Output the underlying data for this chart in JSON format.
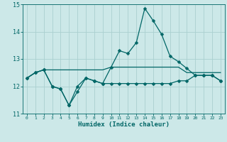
{
  "xlabel": "Humidex (Indice chaleur)",
  "xlim": [
    -0.5,
    23.5
  ],
  "ylim": [
    11,
    15
  ],
  "yticks": [
    11,
    12,
    13,
    14,
    15
  ],
  "xticks": [
    0,
    1,
    2,
    3,
    4,
    5,
    6,
    7,
    8,
    9,
    10,
    11,
    12,
    13,
    14,
    15,
    16,
    17,
    18,
    19,
    20,
    21,
    22,
    23
  ],
  "bg_color": "#cce8e8",
  "grid_color": "#aad0d0",
  "line_color": "#006666",
  "line1_x": [
    0,
    1,
    2,
    3,
    4,
    5,
    6,
    7,
    8,
    9,
    10,
    11,
    12,
    13,
    14,
    15,
    16,
    17,
    18,
    19,
    20,
    21,
    22,
    23
  ],
  "line1_y": [
    12.3,
    12.5,
    12.6,
    12.6,
    12.6,
    12.6,
    12.6,
    12.6,
    12.6,
    12.6,
    12.7,
    12.7,
    12.7,
    12.7,
    12.7,
    12.7,
    12.7,
    12.7,
    12.7,
    12.5,
    12.5,
    12.5,
    12.5,
    12.5
  ],
  "line2_x": [
    0,
    1,
    2,
    3,
    4,
    5,
    6,
    7,
    8,
    9,
    10,
    11,
    12,
    13,
    14,
    15,
    16,
    17,
    18,
    19,
    20,
    21,
    22,
    23
  ],
  "line2_y": [
    12.3,
    12.5,
    12.6,
    12.0,
    11.9,
    11.3,
    11.8,
    12.3,
    12.2,
    12.1,
    12.1,
    12.1,
    12.1,
    12.1,
    12.1,
    12.1,
    12.1,
    12.1,
    12.2,
    12.2,
    12.4,
    12.4,
    12.4,
    12.2
  ],
  "line3_x": [
    0,
    1,
    2,
    3,
    4,
    5,
    6,
    7,
    8,
    9,
    10,
    11,
    12,
    13,
    14,
    15,
    16,
    17,
    18,
    19,
    20,
    21,
    22,
    23
  ],
  "line3_y": [
    12.3,
    12.5,
    12.6,
    12.0,
    11.9,
    11.3,
    12.0,
    12.3,
    12.2,
    12.1,
    12.7,
    13.3,
    13.2,
    13.6,
    14.85,
    14.4,
    13.9,
    13.1,
    12.9,
    12.65,
    12.4,
    12.4,
    12.4,
    12.2
  ],
  "markersize": 2.5,
  "linewidth": 0.9
}
